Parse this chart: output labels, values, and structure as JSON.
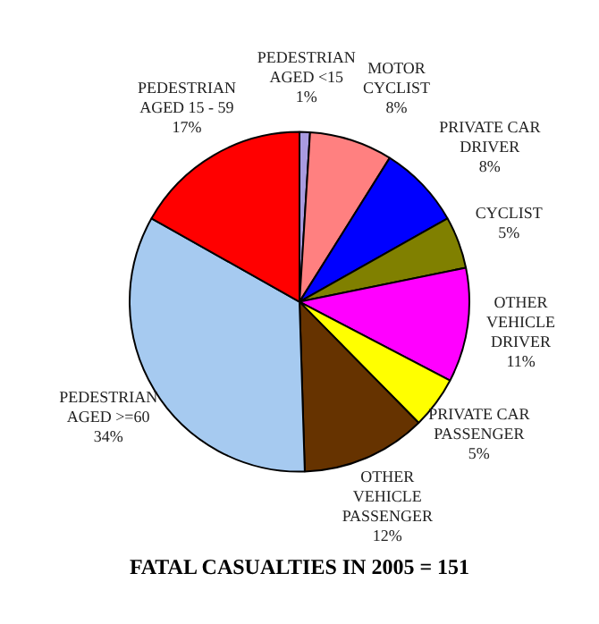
{
  "chart_data": {
    "type": "pie",
    "title": "FATAL CASUALTIES IN 2005 = 151",
    "categories": [
      "PEDESTRIAN AGED <15",
      "MOTOR CYCLIST",
      "PRIVATE CAR DRIVER",
      "CYCLIST",
      "OTHER VEHICLE DRIVER",
      "PRIVATE CAR PASSENGER",
      "OTHER VEHICLE PASSENGER",
      "PEDESTRIAN AGED >=60",
      "PEDESTRIAN AGED 15 - 59"
    ],
    "values": [
      1,
      8,
      8,
      5,
      11,
      5,
      12,
      34,
      17
    ],
    "value_labels": [
      "1%",
      "8%",
      "8%",
      "5%",
      "11%",
      "5%",
      "12%",
      "34%",
      "17%"
    ],
    "colors": [
      "#a99be0",
      "#ff8080",
      "#0000ff",
      "#808000",
      "#ff00ff",
      "#ffff00",
      "#663300",
      "#a6caf0",
      "#ff0000"
    ],
    "legend": false
  }
}
